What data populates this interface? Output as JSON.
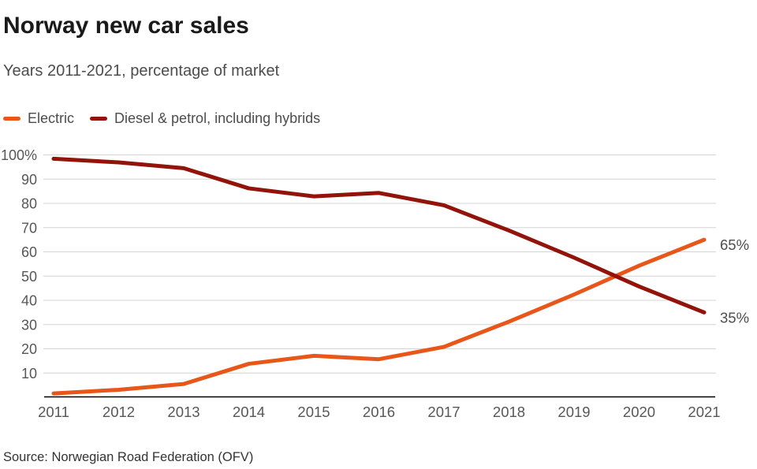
{
  "header": {
    "title": "Norway new car sales",
    "subtitle": "Years 2011-2021, percentage of market"
  },
  "footer": {
    "source": "Source: Norwegian Road Federation (OFV)"
  },
  "colors": {
    "electric": "#e9561a",
    "diesel_petrol": "#921309",
    "gridline": "#d4d4d4",
    "axis_line": "#000000",
    "tick_label": "#575757",
    "end_label": "#4d4d4d"
  },
  "chart_data": {
    "type": "line",
    "title": "Norway new car sales",
    "subtitle": "Years 2011-2021, percentage of market",
    "xlabel": "",
    "ylabel": "",
    "x": [
      2011,
      2012,
      2013,
      2014,
      2015,
      2016,
      2017,
      2018,
      2019,
      2020,
      2021
    ],
    "series": [
      {
        "name": "Electric",
        "color": "#e9561a",
        "values": [
          1.6,
          3.1,
          5.5,
          13.8,
          17.1,
          15.7,
          20.8,
          31.2,
          42.4,
          54.3,
          65
        ],
        "end_label": "65%"
      },
      {
        "name": "Diesel & petrol, including hybrids",
        "color": "#921309",
        "values": [
          98.4,
          96.9,
          94.5,
          86.2,
          82.9,
          84.3,
          79.2,
          68.8,
          57.6,
          45.7,
          35
        ],
        "end_label": "35%"
      }
    ],
    "ylim": [
      0,
      100
    ],
    "yticks": [
      10,
      20,
      30,
      40,
      50,
      60,
      70,
      80,
      90,
      100
    ],
    "ytick_labels": [
      "10",
      "20",
      "30",
      "40",
      "50",
      "60",
      "70",
      "80",
      "90",
      "100%"
    ],
    "grid": true,
    "legend_position": "top-left"
  }
}
